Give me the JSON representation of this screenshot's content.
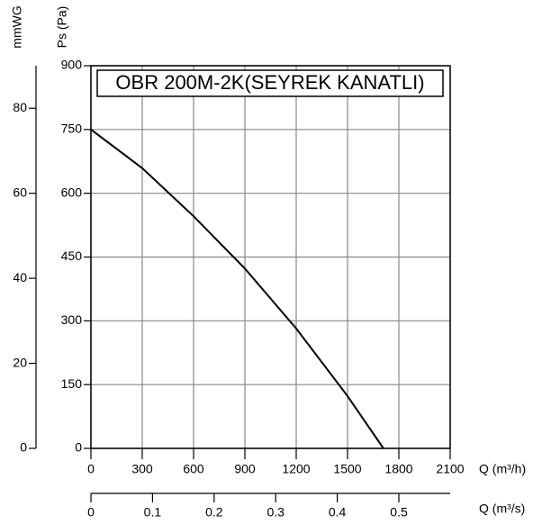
{
  "chart_data": {
    "type": "line",
    "title": "OBR 200M-2K(SEYREK KANATLI)",
    "x_label": "Q (m³/h)",
    "y_label": "Ps (Pa)",
    "y2_label": "mmWG",
    "x2_label": "Q (m³/s)",
    "x": [
      0,
      300,
      600,
      900,
      1200,
      1500,
      1710
    ],
    "series": [
      {
        "color": "#000000",
        "values": [
          750,
          659,
          546,
          423,
          282,
          123,
          0
        ]
      }
    ],
    "xlim": [
      0,
      2100
    ],
    "xticks": [
      0,
      300,
      600,
      900,
      1200,
      1500,
      1800,
      2100
    ],
    "ylim": [
      0,
      900
    ],
    "yticks": [
      0,
      150,
      300,
      450,
      600,
      750,
      900
    ],
    "y2lim": [
      0,
      90
    ],
    "y2ticks": [
      0,
      20,
      40,
      60,
      80
    ],
    "x2lim": [
      0,
      0.5833
    ],
    "x2ticks": [
      0,
      0.1,
      0.2,
      0.3,
      0.4,
      0.5
    ],
    "grid": true
  }
}
